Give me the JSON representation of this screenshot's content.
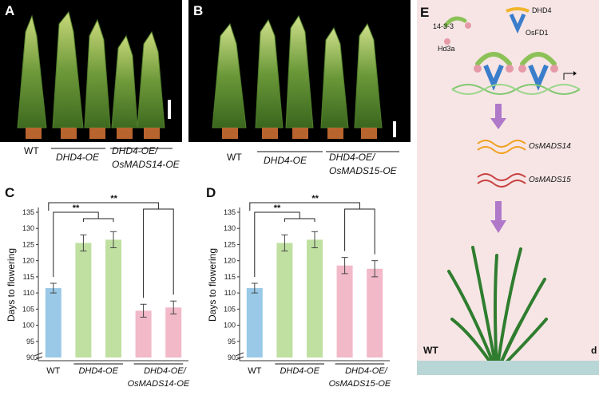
{
  "panels": {
    "A": {
      "letter": "A",
      "labels": [
        "WT",
        "DHD4-OE",
        "DHD4-OE/",
        "OsMADS14-OE"
      ]
    },
    "B": {
      "letter": "B",
      "labels": [
        "WT",
        "DHD4-OE",
        "DHD4-OE/",
        "OsMADS15-OE"
      ]
    },
    "E": {
      "letter": "E",
      "proteins": [
        "14-3-3",
        "DHD4",
        "Hd3a",
        "OsFD1"
      ],
      "genes": [
        "OsMADS14",
        "OsMADS15"
      ],
      "wt_label": "WT",
      "right_edge_label": "d"
    }
  },
  "chart_data": [
    {
      "type": "bar",
      "panel": "C",
      "categories": [
        "WT",
        "DHD4-OE",
        "DHD4-OE",
        "DHD4-OE/OsMADS14-OE",
        "DHD4-OE/OsMADS14-OE"
      ],
      "tick_groups": [
        "WT",
        "DHD4-OE",
        "DHD4-OE/",
        "OsMADS14-OE"
      ],
      "values": [
        111.5,
        125.5,
        126.5,
        104.5,
        105.5
      ],
      "errors": [
        1.5,
        2.5,
        2.5,
        2.0,
        2.0
      ],
      "colors": [
        "#9ac9e8",
        "#bfe0a0",
        "#bfe0a0",
        "#f2b9c8",
        "#f2b9c8"
      ],
      "ylabel": "Days to flowering",
      "ylim": [
        90,
        135
      ],
      "yticks": [
        90,
        95,
        100,
        105,
        110,
        115,
        120,
        125,
        130,
        135
      ],
      "axis_break": true,
      "significance": [
        "**",
        "**"
      ]
    },
    {
      "type": "bar",
      "panel": "D",
      "categories": [
        "WT",
        "DHD4-OE",
        "DHD4-OE",
        "DHD4-OE/OsMADS15-OE",
        "DHD4-OE/OsMADS15-OE"
      ],
      "tick_groups": [
        "WT",
        "DHD4-OE",
        "DHD4-OE/",
        "OsMADS15-OE"
      ],
      "values": [
        111.5,
        125.5,
        126.5,
        118.5,
        117.5
      ],
      "errors": [
        1.5,
        2.5,
        2.5,
        2.5,
        2.5
      ],
      "colors": [
        "#9ac9e8",
        "#bfe0a0",
        "#bfe0a0",
        "#f2b9c8",
        "#f2b9c8"
      ],
      "ylabel": "Days to flowering",
      "ylim": [
        90,
        135
      ],
      "yticks": [
        90,
        95,
        100,
        105,
        110,
        115,
        120,
        125,
        130,
        135
      ],
      "axis_break": true,
      "significance": [
        "**",
        "**"
      ]
    }
  ]
}
